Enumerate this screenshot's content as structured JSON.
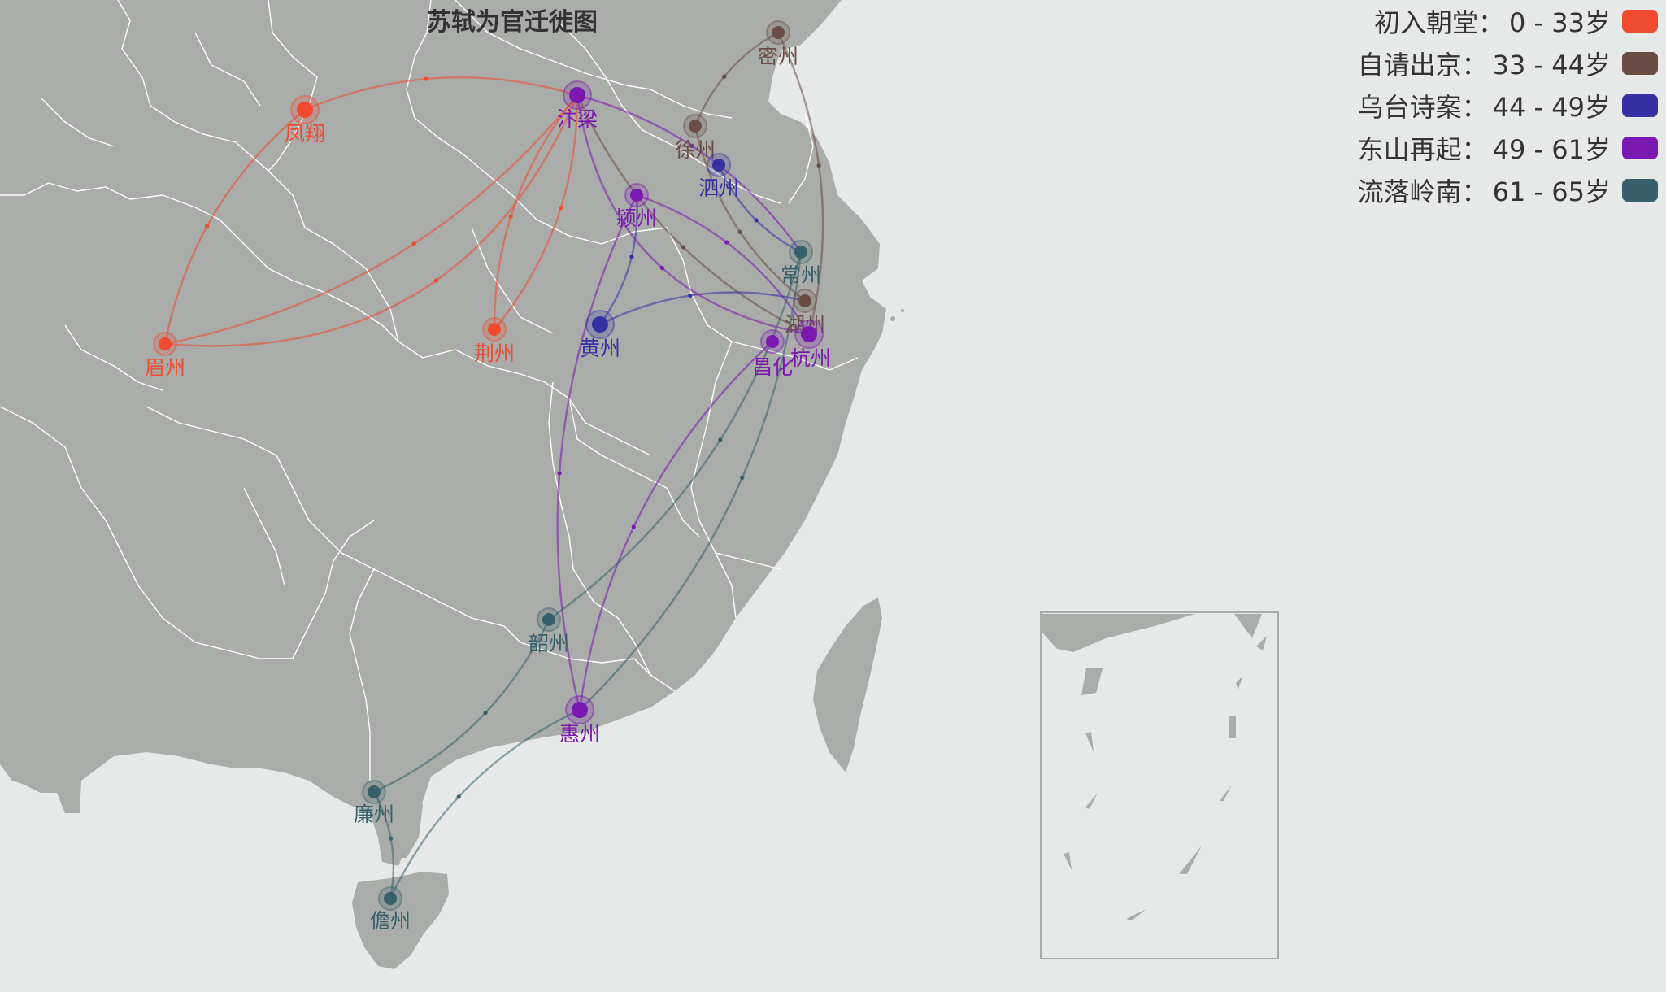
{
  "title": "苏轼为官迁徙图",
  "colors": {
    "background": "#e6e9e8",
    "land": "#a9aca8",
    "border": "#ffffff"
  },
  "legend": [
    {
      "id": "p1",
      "label": "初入朝堂：",
      "range": "0 - 33岁",
      "color": "#f04a31"
    },
    {
      "id": "p2",
      "label": "自请出京：",
      "range": "33 - 44岁",
      "color": "#6b4d47"
    },
    {
      "id": "p3",
      "label": "乌台诗案：",
      "range": "44 - 49岁",
      "color": "#3630a3"
    },
    {
      "id": "p4",
      "label": "东山再起：",
      "range": "49 - 61岁",
      "color": "#7a18b0"
    },
    {
      "id": "p5",
      "label": "流落岭南：",
      "range": "61 - 65岁",
      "color": "#37606b"
    }
  ],
  "cities": [
    {
      "id": "fengxiang",
      "name": "凤翔",
      "period": "p1"
    },
    {
      "id": "bianliang",
      "name": "汴梁",
      "period": "p4"
    },
    {
      "id": "meizhou",
      "name": "眉州",
      "period": "p1"
    },
    {
      "id": "jingzhou",
      "name": "荆州",
      "period": "p1"
    },
    {
      "id": "mizhou",
      "name": "密州",
      "period": "p2"
    },
    {
      "id": "xuzhou",
      "name": "徐州",
      "period": "p2"
    },
    {
      "id": "huzhou",
      "name": "湖州",
      "period": "p2"
    },
    {
      "id": "sizhou",
      "name": "泗州",
      "period": "p3"
    },
    {
      "id": "huangzhou",
      "name": "黄州",
      "period": "p3"
    },
    {
      "id": "yingzhou",
      "name": "颍州",
      "period": "p4"
    },
    {
      "id": "hangzhou",
      "name": "杭州",
      "period": "p4"
    },
    {
      "id": "changhua",
      "name": "昌化",
      "period": "p4"
    },
    {
      "id": "huizhou",
      "name": "惠州",
      "period": "p4"
    },
    {
      "id": "changzhou",
      "name": "常州",
      "period": "p5"
    },
    {
      "id": "shaozhou",
      "name": "韶州",
      "period": "p5"
    },
    {
      "id": "lianzhou",
      "name": "廉州",
      "period": "p5"
    },
    {
      "id": "danzhou",
      "name": "儋州",
      "period": "p5"
    }
  ],
  "routes": [
    {
      "from": "meizhou",
      "to": "bianliang",
      "period": "p1"
    },
    {
      "from": "bianliang",
      "to": "fengxiang",
      "period": "p1"
    },
    {
      "from": "fengxiang",
      "to": "meizhou",
      "period": "p1"
    },
    {
      "from": "meizhou",
      "to": "bianliang",
      "period": "p1"
    },
    {
      "from": "bianliang",
      "to": "jingzhou",
      "period": "p1"
    },
    {
      "from": "jingzhou",
      "to": "bianliang",
      "period": "p1"
    },
    {
      "from": "bianliang",
      "to": "hangzhou",
      "period": "p2"
    },
    {
      "from": "hangzhou",
      "to": "mizhou",
      "period": "p2"
    },
    {
      "from": "mizhou",
      "to": "xuzhou",
      "period": "p2"
    },
    {
      "from": "xuzhou",
      "to": "huzhou",
      "period": "p2"
    },
    {
      "from": "huzhou",
      "to": "huangzhou",
      "period": "p3"
    },
    {
      "from": "huangzhou",
      "to": "yingzhou",
      "period": "p3"
    },
    {
      "from": "sizhou",
      "to": "changzhou",
      "period": "p3"
    },
    {
      "from": "changzhou",
      "to": "bianliang",
      "period": "p4"
    },
    {
      "from": "bianliang",
      "to": "hangzhou",
      "period": "p4"
    },
    {
      "from": "hangzhou",
      "to": "yingzhou",
      "period": "p4"
    },
    {
      "from": "yingzhou",
      "to": "huizhou",
      "period": "p4"
    },
    {
      "from": "changhua",
      "to": "huizhou",
      "period": "p4"
    },
    {
      "from": "huizhou",
      "to": "danzhou",
      "period": "p5"
    },
    {
      "from": "danzhou",
      "to": "lianzhou",
      "period": "p5"
    },
    {
      "from": "lianzhou",
      "to": "shaozhou",
      "period": "p5"
    },
    {
      "from": "shaozhou",
      "to": "changzhou",
      "period": "p5"
    },
    {
      "from": "huizhou",
      "to": "changzhou",
      "period": "p5"
    }
  ]
}
